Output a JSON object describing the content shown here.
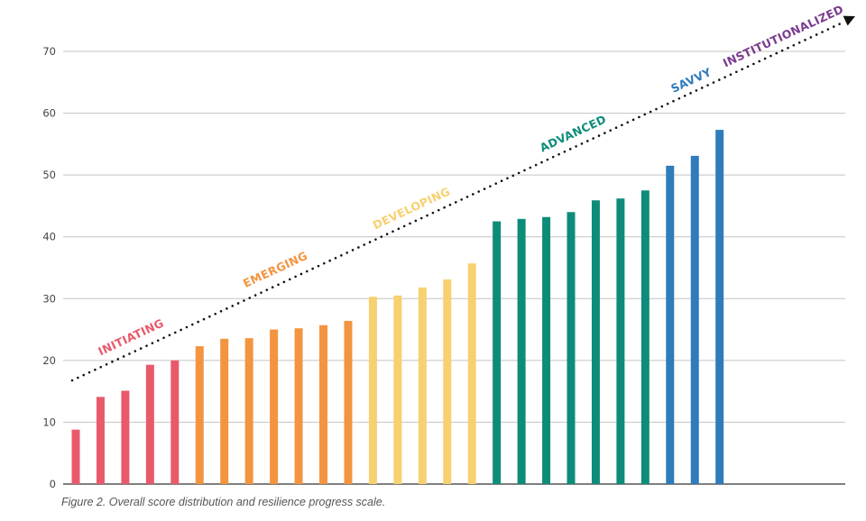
{
  "chart_data": {
    "type": "bar",
    "title": "",
    "xlabel": "",
    "ylabel": "",
    "ylim": [
      0,
      70
    ],
    "yticks": [
      0,
      10,
      20,
      30,
      40,
      50,
      60,
      70
    ],
    "grid": true,
    "values": [
      8.8,
      14.1,
      15.1,
      19.3,
      20.0,
      22.3,
      23.5,
      23.6,
      25.0,
      25.2,
      25.7,
      26.4,
      30.3,
      30.5,
      31.8,
      33.1,
      35.7,
      42.5,
      42.9,
      43.2,
      44.0,
      45.9,
      46.2,
      47.5,
      51.5,
      53.1,
      57.3
    ],
    "stages": [
      {
        "label": "INITIATING",
        "color": "#e85a6b",
        "count": 5
      },
      {
        "label": "EMERGING",
        "color": "#f39440",
        "count": 7
      },
      {
        "label": "DEVELOPING",
        "color": "#f7d070",
        "count": 5
      },
      {
        "label": "ADVANCED",
        "color": "#0e8c7a",
        "count": 7
      },
      {
        "label": "SAVVY",
        "color": "#2f7bbb",
        "count": 3
      },
      {
        "label": "INSTITUTIONALIZED",
        "color": "#7b3b8f",
        "count": 0
      }
    ],
    "trend_arrow": "dotted, rising left to right"
  },
  "caption": "Figure 2. Overall score distribution and resilience progress scale."
}
